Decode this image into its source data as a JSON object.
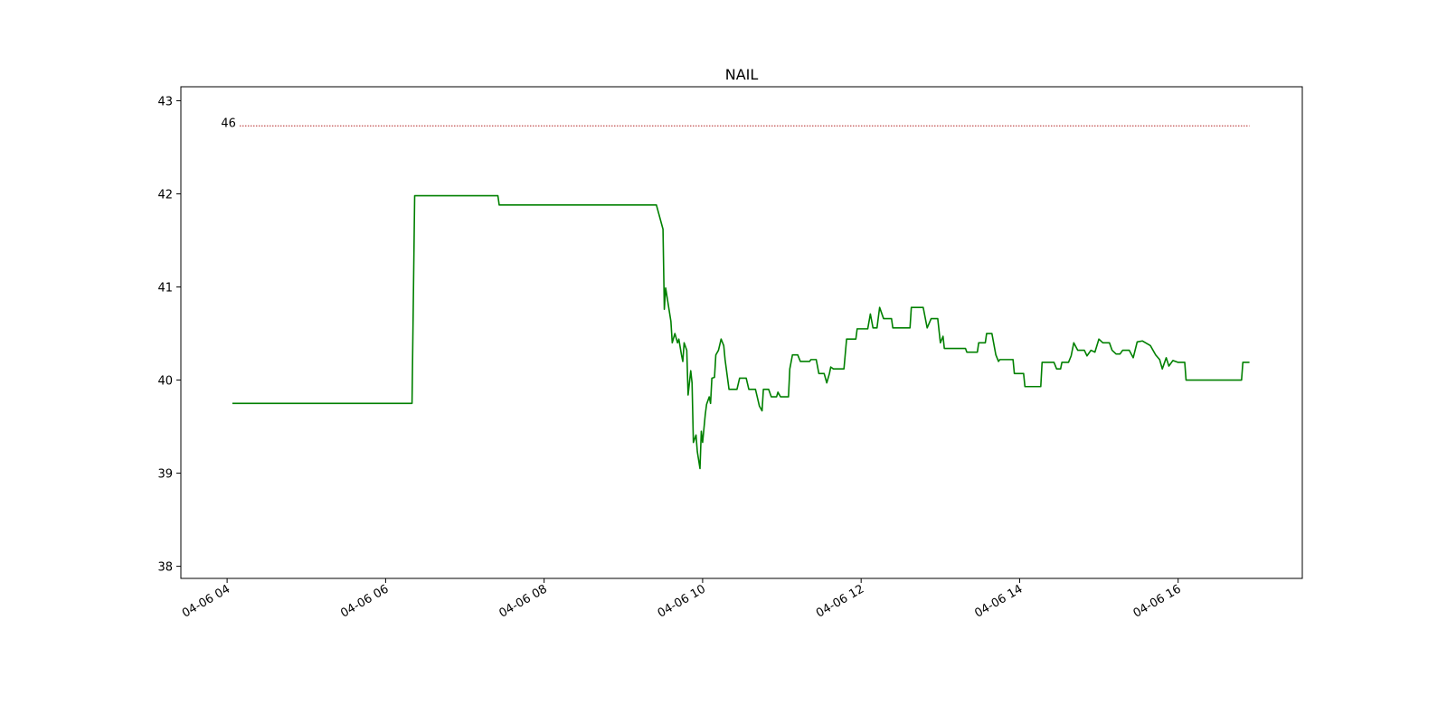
{
  "chart_data": {
    "type": "line",
    "title": "NAIL",
    "x": [
      "04-06 04:04",
      "04-06 06:20",
      "04-06 06:22",
      "04-06 07:25",
      "04-06 07:26",
      "04-06 09:25",
      "04-06 09:30",
      "04-06 09:31",
      "04-06 09:32",
      "04-06 09:34",
      "04-06 09:36",
      "04-06 09:37",
      "04-06 09:39",
      "04-06 09:41",
      "04-06 09:42",
      "04-06 09:44",
      "04-06 09:45",
      "04-06 09:46",
      "04-06 09:48",
      "04-06 09:49",
      "04-06 09:51",
      "04-06 09:52",
      "04-06 09:53",
      "04-06 09:55",
      "04-06 09:56",
      "04-06 09:58",
      "04-06 09:59",
      "04-06 10:00",
      "04-06 10:02",
      "04-06 10:03",
      "04-06 10:05",
      "04-06 10:06",
      "04-06 10:07",
      "04-06 10:09",
      "04-06 10:10",
      "04-06 10:12",
      "04-06 10:14",
      "04-06 10:16",
      "04-06 10:17",
      "04-06 10:20",
      "04-06 10:26",
      "04-06 10:28",
      "04-06 10:33",
      "04-06 10:35",
      "04-06 10:40",
      "04-06 10:43",
      "04-06 10:45",
      "04-06 10:46",
      "04-06 10:50",
      "04-06 10:52",
      "04-06 10:56",
      "04-06 10:57",
      "04-06 10:59",
      "04-06 11:05",
      "04-06 11:06",
      "04-06 11:08",
      "04-06 11:12",
      "04-06 11:14",
      "04-06 11:21",
      "04-06 11:22",
      "04-06 11:26",
      "04-06 11:28",
      "04-06 11:32",
      "04-06 11:34",
      "04-06 11:36",
      "04-06 11:37",
      "04-06 11:39",
      "04-06 11:47",
      "04-06 11:49",
      "04-06 11:56",
      "04-06 11:57",
      "04-06 12:05",
      "04-06 12:07",
      "04-06 12:09",
      "04-06 12:12",
      "04-06 12:14",
      "04-06 12:17",
      "04-06 12:23",
      "04-06 12:24",
      "04-06 12:37",
      "04-06 12:38",
      "04-06 12:47",
      "04-06 12:50",
      "04-06 12:53",
      "04-06 12:58",
      "04-06 13:00",
      "04-06 13:02",
      "04-06 13:03",
      "04-06 13:19",
      "04-06 13:20",
      "04-06 13:28",
      "04-06 13:29",
      "04-06 13:34",
      "04-06 13:35",
      "04-06 13:39",
      "04-06 13:42",
      "04-06 13:44",
      "04-06 13:45",
      "04-06 13:55",
      "04-06 13:56",
      "04-06 14:03",
      "04-06 14:04",
      "04-06 14:16",
      "04-06 14:17",
      "04-06 14:26",
      "04-06 14:28",
      "04-06 14:31",
      "04-06 14:32",
      "04-06 14:37",
      "04-06 14:39",
      "04-06 14:41",
      "04-06 14:44",
      "04-06 14:49",
      "04-06 14:51",
      "04-06 14:54",
      "04-06 14:57",
      "04-06 15:00",
      "04-06 15:03",
      "04-06 15:08",
      "04-06 15:10",
      "04-06 15:13",
      "04-06 15:16",
      "04-06 15:18",
      "04-06 15:23",
      "04-06 15:26",
      "04-06 15:29",
      "04-06 15:33",
      "04-06 15:39",
      "04-06 15:43",
      "04-06 15:46",
      "04-06 15:48",
      "04-06 15:51",
      "04-06 15:53",
      "04-06 15:56",
      "04-06 16:00",
      "04-06 16:05",
      "04-06 16:06",
      "04-06 16:48",
      "04-06 16:49",
      "04-06 16:54"
    ],
    "series": [
      {
        "color": "#008000",
        "values": [
          39.75,
          39.75,
          41.98,
          41.98,
          41.88,
          41.88,
          41.62,
          40.76,
          40.99,
          40.81,
          40.63,
          40.4,
          40.5,
          40.4,
          40.44,
          40.27,
          40.2,
          40.4,
          40.32,
          39.84,
          40.1,
          39.97,
          39.33,
          39.41,
          39.23,
          39.05,
          39.45,
          39.33,
          39.63,
          39.74,
          39.82,
          39.75,
          40.02,
          40.03,
          40.27,
          40.32,
          40.44,
          40.37,
          40.22,
          39.9,
          39.9,
          40.02,
          40.02,
          39.9,
          39.9,
          39.72,
          39.67,
          39.9,
          39.9,
          39.82,
          39.82,
          39.87,
          39.82,
          39.82,
          40.12,
          40.27,
          40.27,
          40.2,
          40.2,
          40.22,
          40.22,
          40.07,
          40.07,
          39.97,
          40.07,
          40.14,
          40.12,
          40.12,
          40.44,
          40.44,
          40.55,
          40.55,
          40.71,
          40.56,
          40.56,
          40.78,
          40.66,
          40.66,
          40.56,
          40.56,
          40.78,
          40.78,
          40.56,
          40.66,
          40.66,
          40.4,
          40.47,
          40.34,
          40.34,
          40.3,
          40.3,
          40.4,
          40.4,
          40.5,
          40.5,
          40.27,
          40.2,
          40.22,
          40.22,
          40.07,
          40.07,
          39.93,
          39.93,
          40.19,
          40.19,
          40.12,
          40.12,
          40.19,
          40.19,
          40.26,
          40.4,
          40.32,
          40.32,
          40.26,
          40.32,
          40.3,
          40.44,
          40.4,
          40.4,
          40.32,
          40.28,
          40.28,
          40.32,
          40.32,
          40.24,
          40.41,
          40.42,
          40.37,
          40.27,
          40.22,
          40.12,
          40.24,
          40.15,
          40.21,
          40.19,
          40.19,
          40.0,
          40.0,
          40.19,
          40.19
        ]
      }
    ],
    "hline": {
      "value": 42.73,
      "label": "46",
      "color": "#b22222"
    },
    "xlim": [
      "04-06 03:25",
      "04-06 17:34"
    ],
    "xticks": [
      {
        "value": "04-06 04:00",
        "label": "04-06 04"
      },
      {
        "value": "04-06 06:00",
        "label": "04-06 06"
      },
      {
        "value": "04-06 08:00",
        "label": "04-06 08"
      },
      {
        "value": "04-06 10:00",
        "label": "04-06 10"
      },
      {
        "value": "04-06 12:00",
        "label": "04-06 12"
      },
      {
        "value": "04-06 14:00",
        "label": "04-06 14"
      },
      {
        "value": "04-06 16:00",
        "label": "04-06 16"
      }
    ],
    "ylim": [
      37.87,
      43.15
    ],
    "yticks": [
      38,
      39,
      40,
      41,
      42,
      43
    ]
  }
}
